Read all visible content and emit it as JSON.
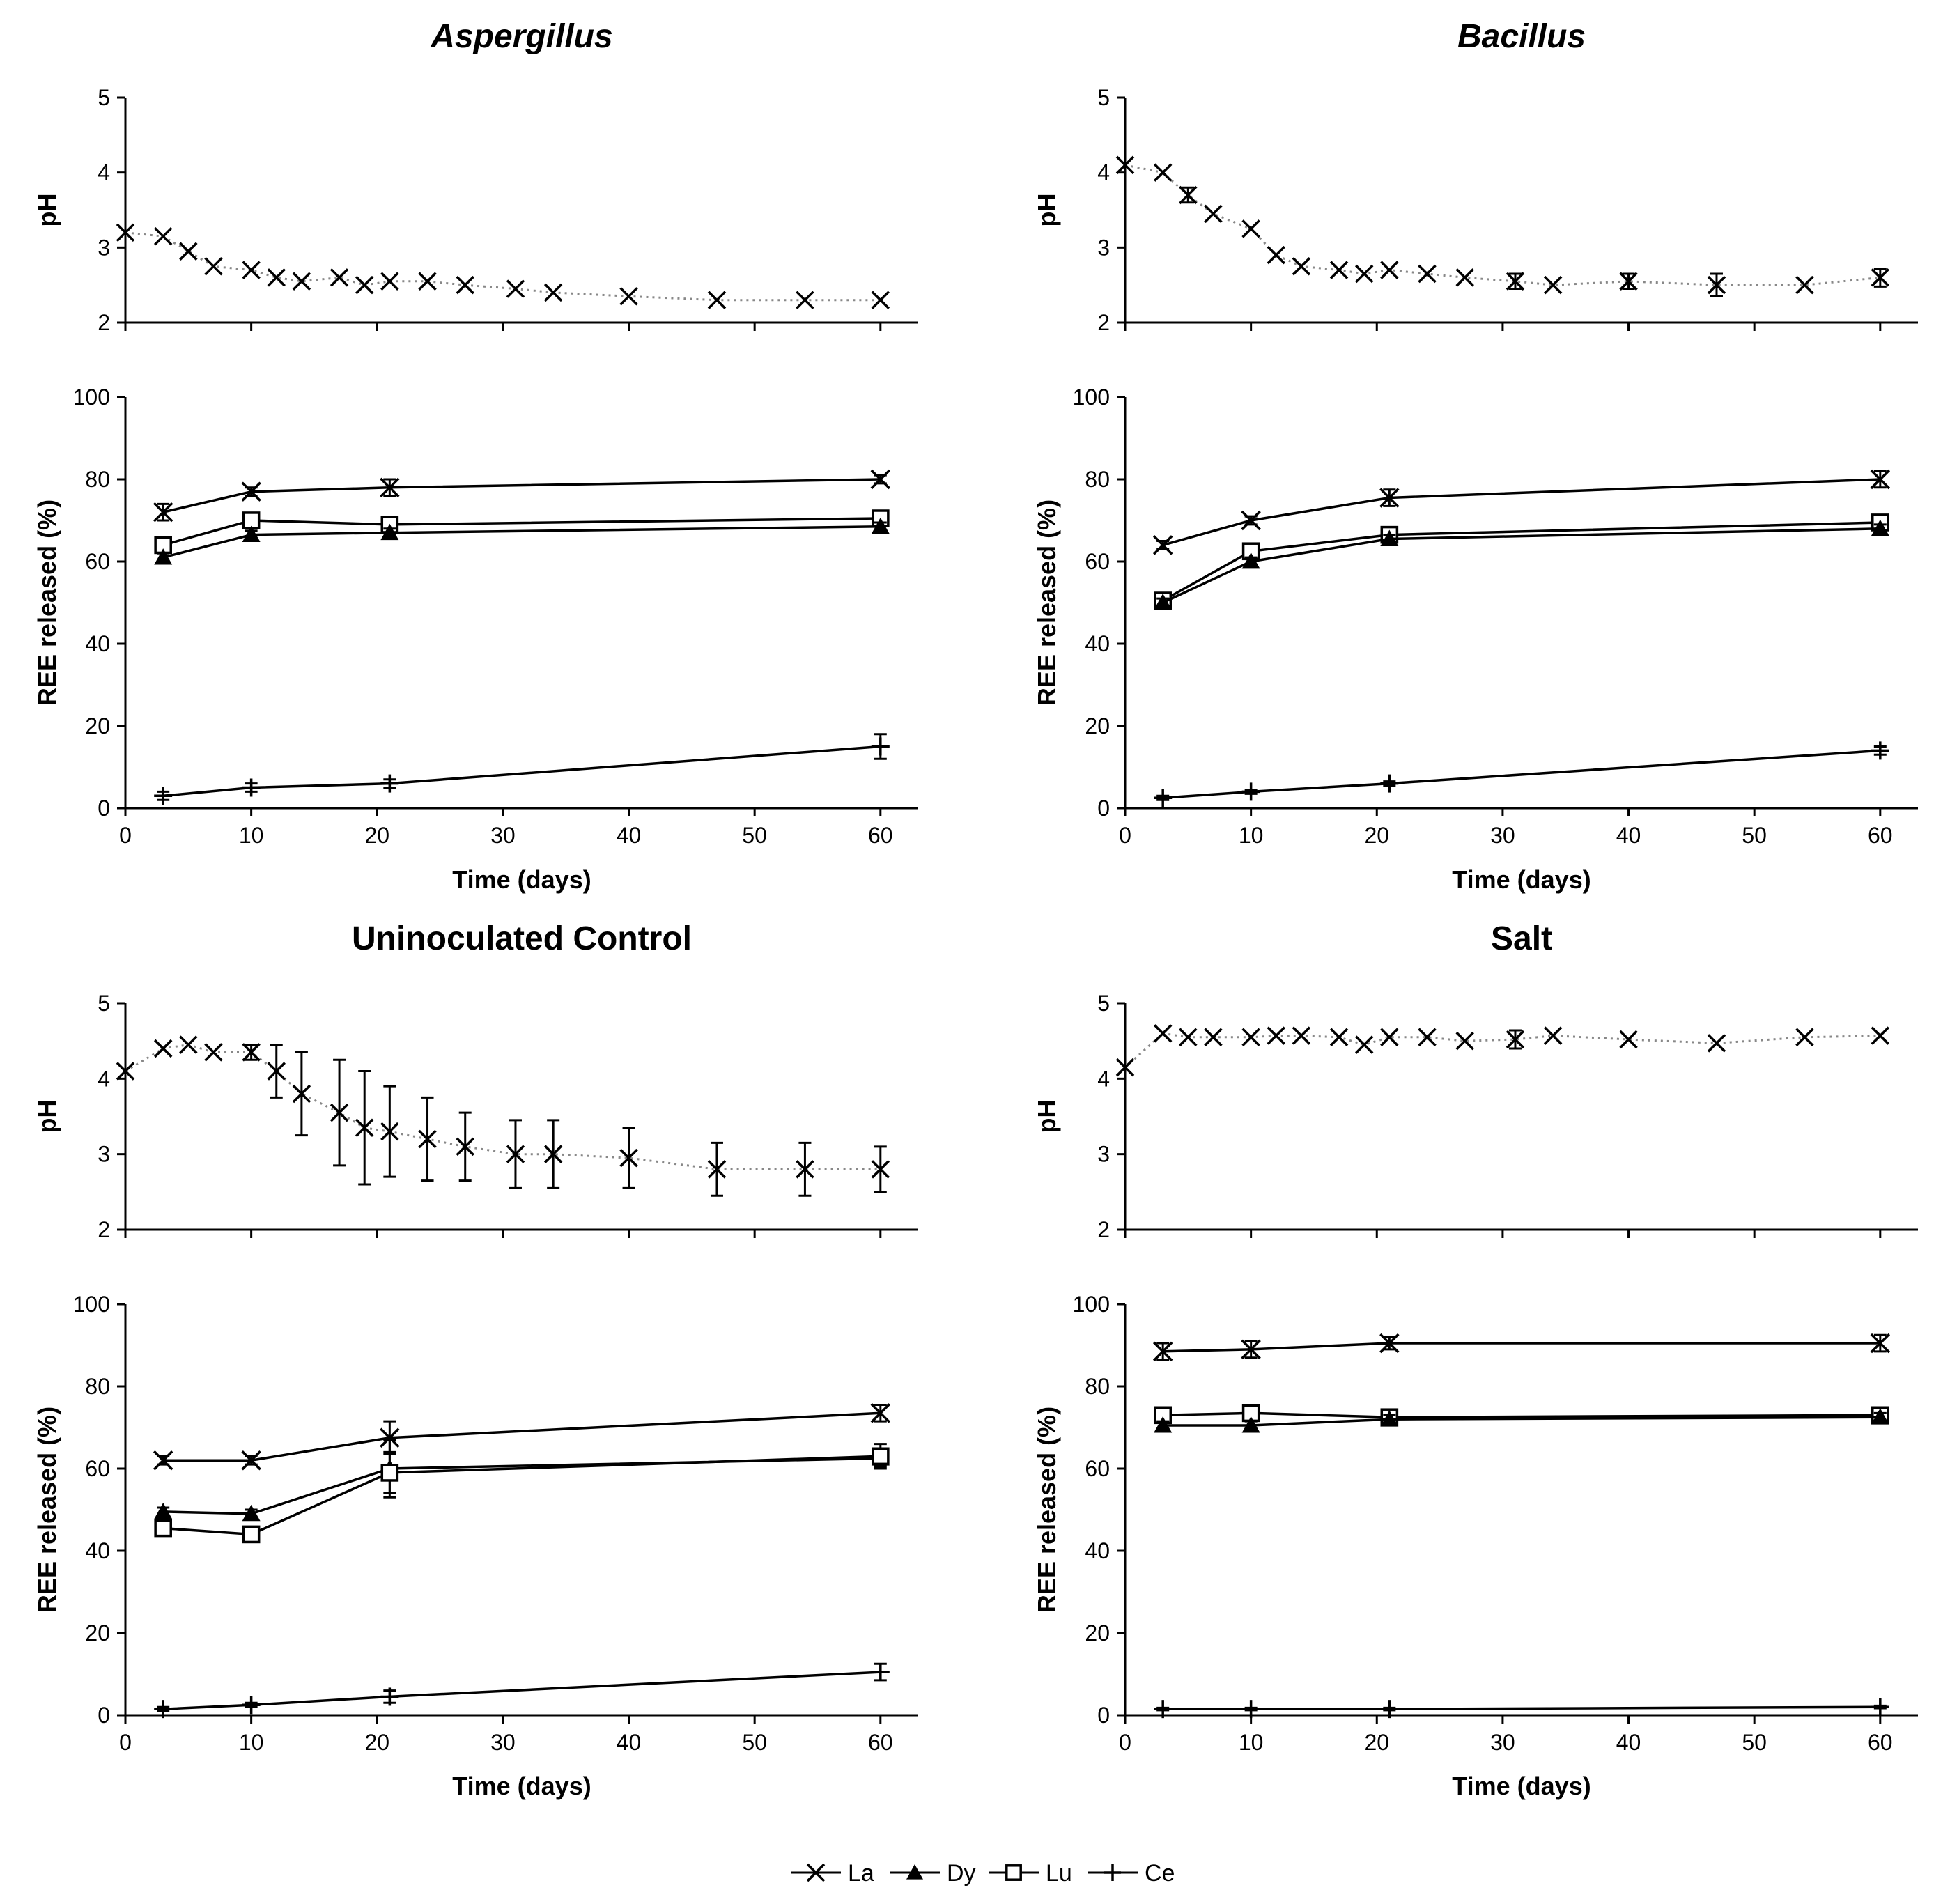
{
  "chart_data": [
    {
      "type": "line",
      "title": "Aspergillus",
      "title_italic": true,
      "ph": {
        "ylabel": "pH",
        "ylim": [
          2,
          5
        ],
        "yticks": [
          2,
          3,
          4,
          5
        ],
        "x": [
          0,
          3,
          5,
          7,
          10,
          12,
          14,
          17,
          19,
          21,
          24,
          27,
          31,
          34,
          40,
          47,
          54,
          60
        ],
        "values": [
          3.2,
          3.15,
          2.95,
          2.75,
          2.7,
          2.6,
          2.55,
          2.6,
          2.5,
          2.55,
          2.55,
          2.5,
          2.45,
          2.4,
          2.35,
          2.3,
          2.3,
          2.3
        ],
        "err": [
          0.05,
          0.05,
          0.05,
          0.05,
          0.05,
          0.05,
          0.05,
          0.05,
          0.05,
          0.05,
          0.05,
          0.05,
          0.05,
          0.05,
          0.05,
          0.05,
          0.05,
          0.05
        ]
      },
      "ree": {
        "ylabel": "REE released (%)",
        "xlabel": "Time (days)",
        "ylim": [
          0,
          100
        ],
        "yticks": [
          0,
          20,
          40,
          60,
          80,
          100
        ],
        "xlim": [
          0,
          63
        ],
        "xticks": [
          0,
          10,
          20,
          30,
          40,
          50,
          60
        ],
        "x": [
          3,
          10,
          21,
          60
        ],
        "series": [
          {
            "name": "La",
            "values": [
              72,
              77,
              78,
              80
            ],
            "err": [
              2,
              1,
              2,
              1
            ]
          },
          {
            "name": "Lu",
            "values": [
              64,
              70,
              69,
              70.5
            ],
            "err": [
              1,
              1,
              1,
              1
            ]
          },
          {
            "name": "Dy",
            "values": [
              61,
              66.5,
              67,
              68.5
            ],
            "err": [
              1,
              1,
              1,
              1
            ]
          },
          {
            "name": "Ce",
            "values": [
              3,
              5,
              6,
              15
            ],
            "err": [
              1,
              1,
              1,
              3
            ]
          }
        ]
      }
    },
    {
      "type": "line",
      "title": "Bacillus",
      "title_italic": true,
      "ph": {
        "ylabel": "pH",
        "ylim": [
          2,
          5
        ],
        "yticks": [
          2,
          3,
          4,
          5
        ],
        "x": [
          0,
          3,
          5,
          7,
          10,
          12,
          14,
          17,
          19,
          21,
          24,
          27,
          31,
          34,
          40,
          47,
          54,
          60
        ],
        "values": [
          4.1,
          4.0,
          3.7,
          3.45,
          3.25,
          2.9,
          2.75,
          2.7,
          2.65,
          2.7,
          2.65,
          2.6,
          2.55,
          2.5,
          2.55,
          2.5,
          2.5,
          2.6
        ],
        "err": [
          0.05,
          0.05,
          0.1,
          0.05,
          0.05,
          0.05,
          0.05,
          0.05,
          0.05,
          0.05,
          0.05,
          0.05,
          0.1,
          0.05,
          0.1,
          0.15,
          0.05,
          0.12
        ]
      },
      "ree": {
        "ylabel": "REE released (%)",
        "xlabel": "Time (days)",
        "ylim": [
          0,
          100
        ],
        "yticks": [
          0,
          20,
          40,
          60,
          80,
          100
        ],
        "xlim": [
          0,
          63
        ],
        "xticks": [
          0,
          10,
          20,
          30,
          40,
          50,
          60
        ],
        "x": [
          3,
          10,
          21,
          60
        ],
        "series": [
          {
            "name": "La",
            "values": [
              64,
              70,
              75.5,
              80
            ],
            "err": [
              1,
              1,
              2,
              2
            ]
          },
          {
            "name": "Lu",
            "values": [
              50.5,
              62.5,
              66.5,
              69.5
            ],
            "err": [
              1,
              1,
              1,
              1
            ]
          },
          {
            "name": "Dy",
            "values": [
              50,
              60,
              65.5,
              68
            ],
            "err": [
              1,
              1,
              1,
              1
            ]
          },
          {
            "name": "Ce",
            "values": [
              2.5,
              4,
              6,
              14
            ],
            "err": [
              0.5,
              0.5,
              0.5,
              1
            ]
          }
        ]
      }
    },
    {
      "type": "line",
      "title": "Uninoculated Control",
      "title_italic": false,
      "ph": {
        "ylabel": "pH",
        "ylim": [
          2,
          5
        ],
        "yticks": [
          2,
          3,
          4,
          5
        ],
        "x": [
          0,
          3,
          5,
          7,
          10,
          12,
          14,
          17,
          19,
          21,
          24,
          27,
          31,
          34,
          40,
          47,
          54,
          60
        ],
        "values": [
          4.1,
          4.4,
          4.45,
          4.35,
          4.35,
          4.1,
          3.8,
          3.55,
          3.35,
          3.3,
          3.2,
          3.1,
          3.0,
          3.0,
          2.95,
          2.8,
          2.8,
          2.8
        ],
        "err": [
          0.05,
          0.05,
          0.05,
          0.05,
          0.1,
          0.35,
          0.55,
          0.7,
          0.75,
          0.6,
          0.55,
          0.45,
          0.45,
          0.45,
          0.4,
          0.35,
          0.35,
          0.3
        ]
      },
      "ree": {
        "ylabel": "REE released (%)",
        "xlabel": "Time (days)",
        "ylim": [
          0,
          100
        ],
        "yticks": [
          0,
          20,
          40,
          60,
          80,
          100
        ],
        "xlim": [
          0,
          63
        ],
        "xticks": [
          0,
          10,
          20,
          30,
          40,
          50,
          60
        ],
        "x": [
          3,
          10,
          21,
          60
        ],
        "series": [
          {
            "name": "La",
            "values": [
              62,
              62,
              67.5,
              73.5
            ],
            "err": [
              1,
              1,
              4,
              2
            ]
          },
          {
            "name": "Dy",
            "values": [
              49.5,
              49,
              60,
              62.5
            ],
            "err": [
              1,
              1,
              7,
              2
            ]
          },
          {
            "name": "Lu",
            "values": [
              45.5,
              44,
              59,
              63
            ],
            "err": [
              1,
              1,
              5,
              3
            ]
          },
          {
            "name": "Ce",
            "values": [
              1.5,
              2.5,
              4.5,
              10.5
            ],
            "err": [
              0.5,
              0.5,
              1.5,
              2
            ]
          }
        ]
      }
    },
    {
      "type": "line",
      "title": "Salt",
      "title_italic": false,
      "ph": {
        "ylabel": "pH",
        "ylim": [
          2,
          5
        ],
        "yticks": [
          2,
          3,
          4,
          5
        ],
        "x": [
          0,
          3,
          5,
          7,
          10,
          12,
          14,
          17,
          19,
          21,
          24,
          27,
          31,
          34,
          40,
          47,
          54,
          60
        ],
        "values": [
          4.15,
          4.6,
          4.55,
          4.55,
          4.55,
          4.57,
          4.57,
          4.55,
          4.45,
          4.55,
          4.55,
          4.5,
          4.52,
          4.57,
          4.52,
          4.47,
          4.55,
          4.57
        ],
        "err": [
          0.05,
          0.03,
          0.03,
          0.03,
          0.03,
          0.03,
          0.03,
          0.03,
          0.03,
          0.03,
          0.03,
          0.03,
          0.12,
          0.03,
          0.03,
          0.03,
          0.03,
          0.03
        ]
      },
      "ree": {
        "ylabel": "REE released (%)",
        "xlabel": "Time (days)",
        "ylim": [
          0,
          100
        ],
        "yticks": [
          0,
          20,
          40,
          60,
          80,
          100
        ],
        "xlim": [
          0,
          63
        ],
        "xticks": [
          0,
          10,
          20,
          30,
          40,
          50,
          60
        ],
        "x": [
          3,
          10,
          21,
          60
        ],
        "series": [
          {
            "name": "La",
            "values": [
              88.5,
              89,
              90.5,
              90.5
            ],
            "err": [
              2,
              2,
              1.5,
              2
            ]
          },
          {
            "name": "Lu",
            "values": [
              73,
              73.5,
              72.5,
              73
            ],
            "err": [
              1,
              1,
              1,
              1
            ]
          },
          {
            "name": "Dy",
            "values": [
              70.5,
              70.5,
              72,
              72.5
            ],
            "err": [
              1,
              1,
              1,
              1
            ]
          },
          {
            "name": "Ce",
            "values": [
              1.5,
              1.5,
              1.5,
              2
            ],
            "err": [
              0.3,
              0.3,
              0.3,
              0.3
            ]
          }
        ]
      }
    }
  ],
  "legend": [
    {
      "name": "La",
      "marker": "x-marker"
    },
    {
      "name": "Dy",
      "marker": "triangle-marker"
    },
    {
      "name": "Lu",
      "marker": "square-marker"
    },
    {
      "name": "Ce",
      "marker": "plus-marker"
    }
  ]
}
